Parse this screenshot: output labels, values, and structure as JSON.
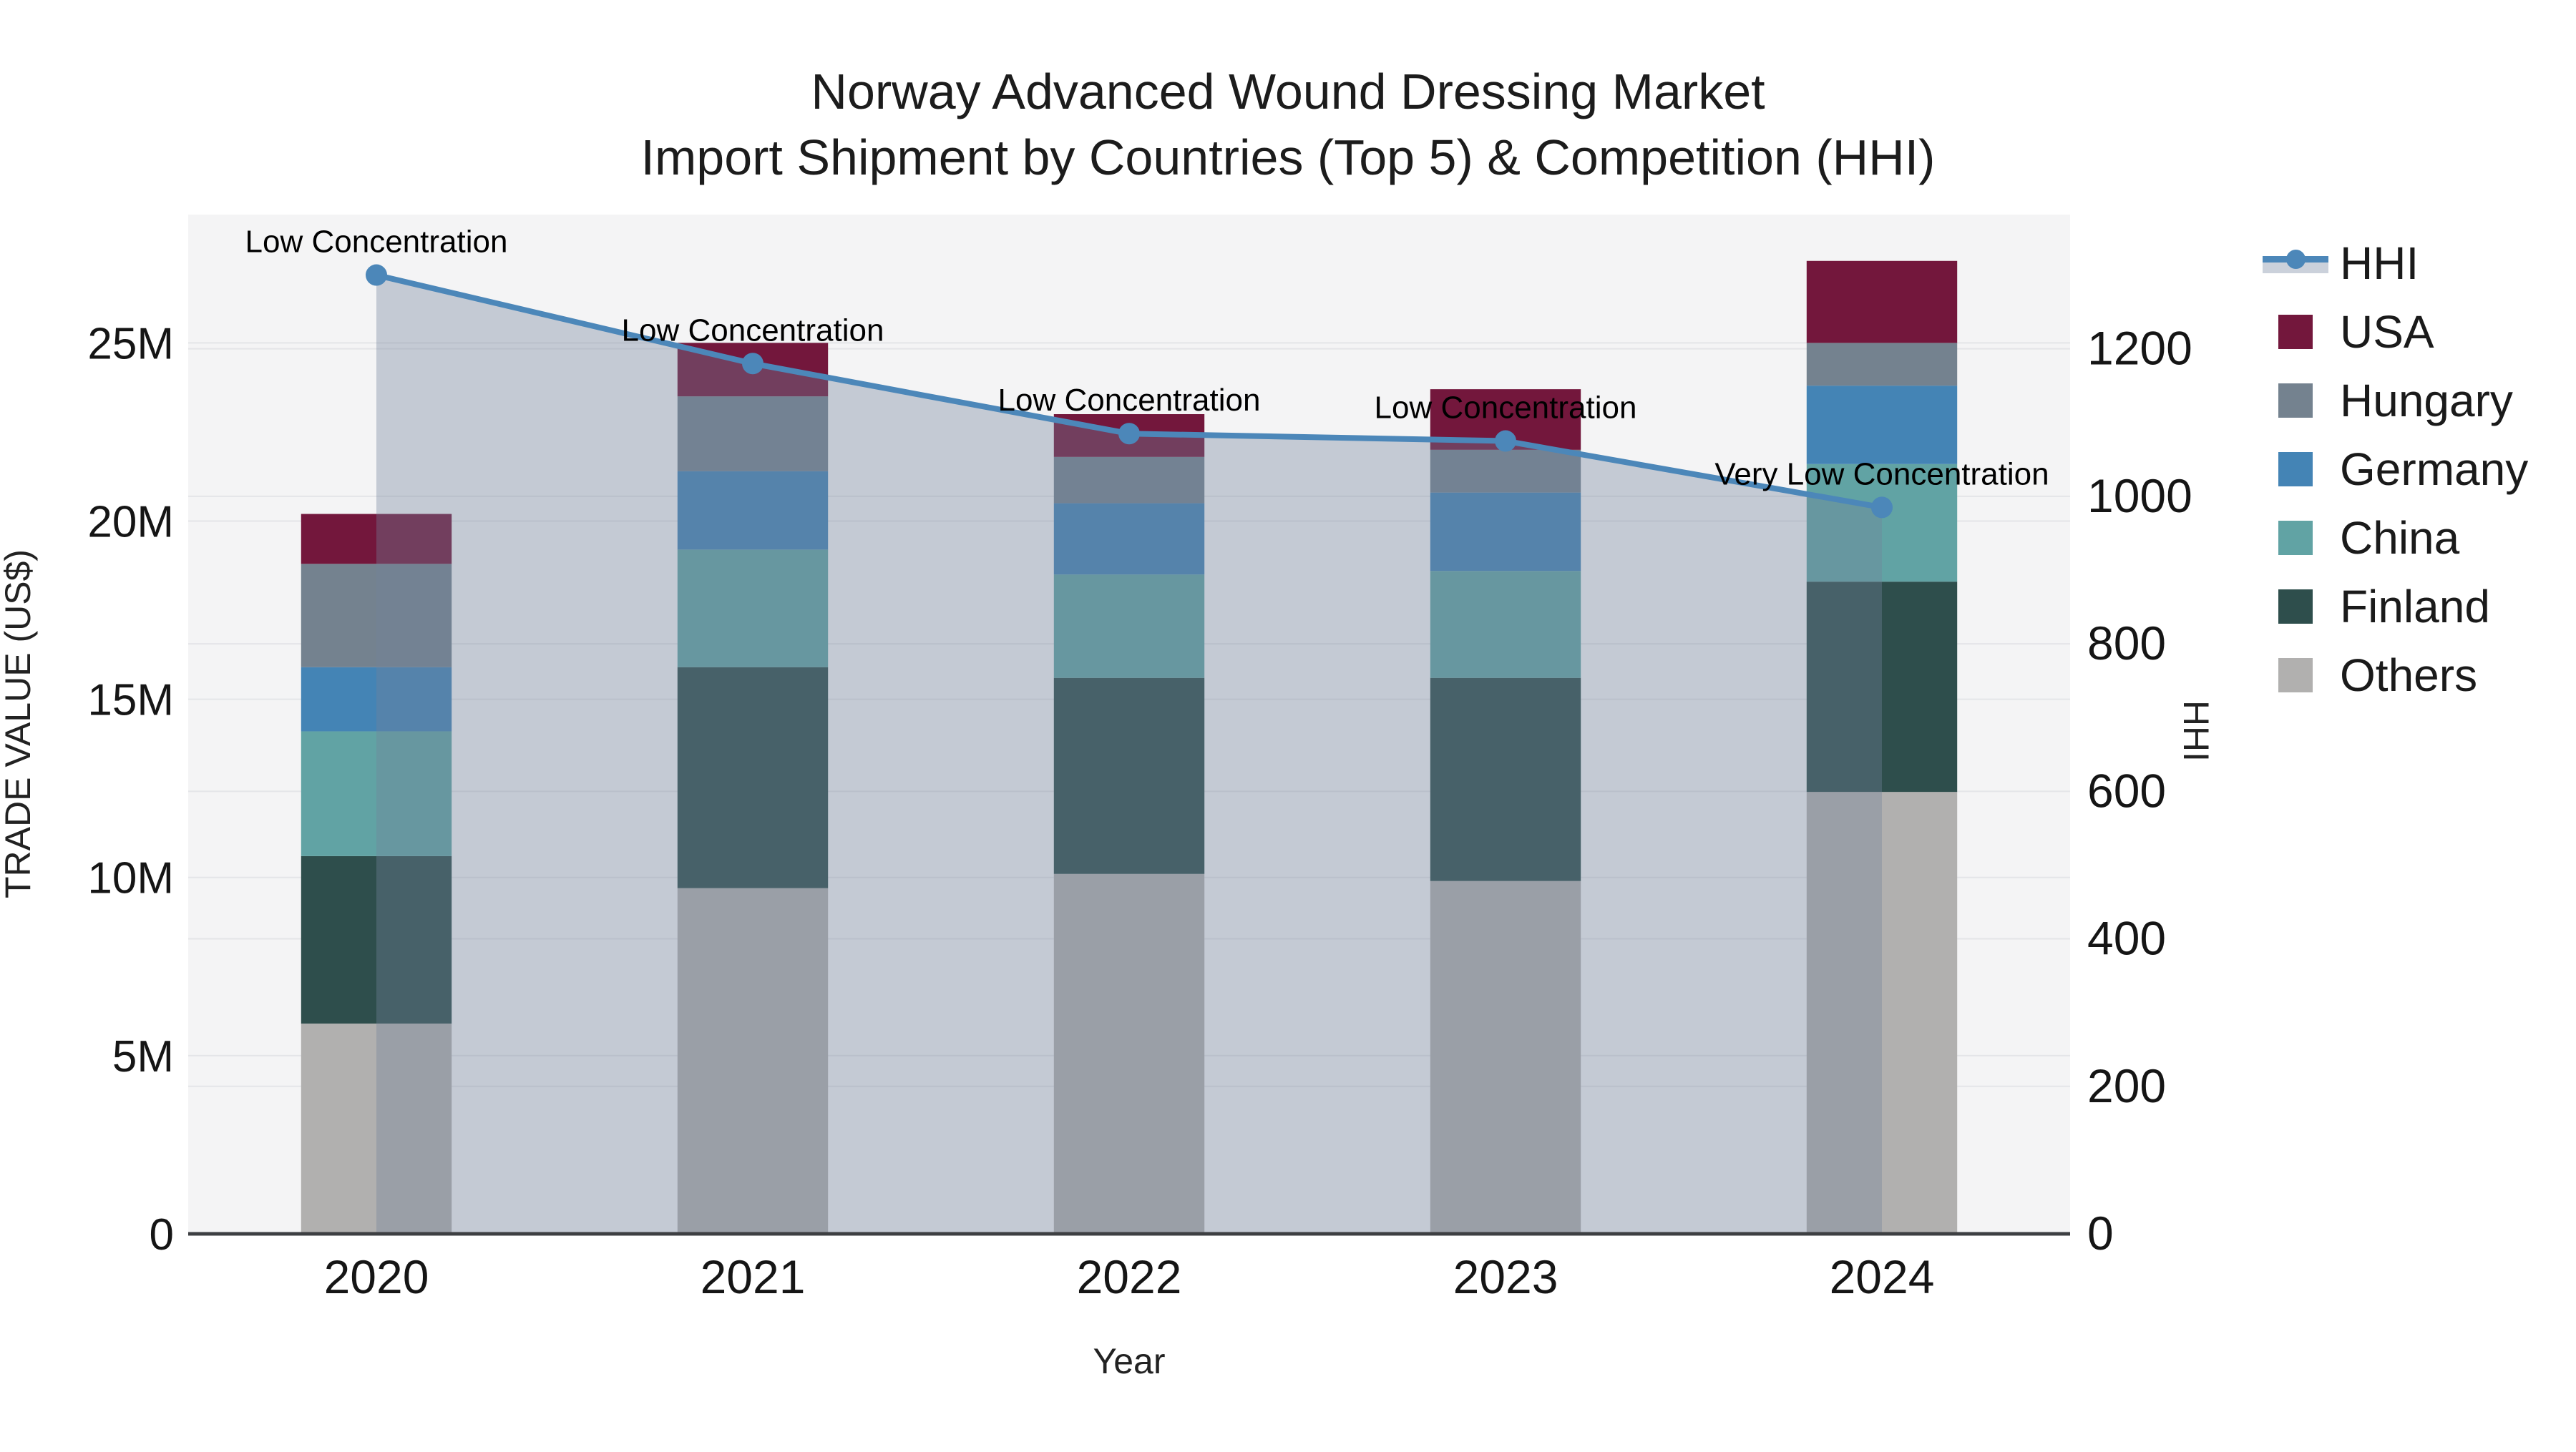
{
  "title": {
    "line1": "Norway Advanced Wound Dressing Market",
    "line2": "Import Shipment by Countries (Top 5) & Competition (HHI)"
  },
  "axes": {
    "x": {
      "title": "Year"
    },
    "y_left": {
      "title": "TRADE VALUE (US$)",
      "tick_labels": [
        "0",
        "5M",
        "10M",
        "15M",
        "20M",
        "25M"
      ],
      "tick_values": [
        0,
        5,
        10,
        15,
        20,
        25
      ]
    },
    "y_right": {
      "title": "HHI",
      "tick_labels": [
        "0",
        "200",
        "400",
        "600",
        "800",
        "1000",
        "1200"
      ],
      "tick_values": [
        0,
        200,
        400,
        600,
        800,
        1000,
        1200
      ]
    }
  },
  "chart_data": {
    "type": "combo: stacked-bar (left axis, million US$) + line-with-area (right axis, HHI)",
    "categories": [
      "2020",
      "2021",
      "2022",
      "2023",
      "2024"
    ],
    "bar_unit": "million US$",
    "series": [
      {
        "name": "Others",
        "color": "#B1B0AF",
        "values": [
          5.9,
          9.7,
          10.1,
          9.9,
          12.4
        ]
      },
      {
        "name": "Finland",
        "color": "#2E4E4C",
        "values": [
          4.7,
          6.2,
          5.5,
          5.7,
          5.9
        ]
      },
      {
        "name": "China",
        "color": "#61A3A4",
        "values": [
          3.5,
          3.3,
          2.9,
          3.0,
          3.3
        ]
      },
      {
        "name": "Germany",
        "color": "#4484B5",
        "values": [
          1.8,
          2.2,
          2.0,
          2.2,
          2.2
        ]
      },
      {
        "name": "Hungary",
        "color": "#74828F",
        "values": [
          2.9,
          2.1,
          1.3,
          1.2,
          1.2
        ]
      },
      {
        "name": "USA",
        "color": "#73173C",
        "values": [
          1.4,
          1.5,
          1.2,
          1.7,
          2.3
        ]
      }
    ],
    "bar_totals": [
      20.2,
      25.0,
      23.0,
      23.7,
      27.3
    ],
    "hhi": {
      "name": "HHI",
      "values": [
        1300,
        1180,
        1085,
        1075,
        985
      ]
    },
    "annotations": [
      "Low Concentration",
      "Low Concentration",
      "Low Concentration",
      "Low Concentration",
      "Very Low Concentration"
    ],
    "ylim_left": [
      0,
      28.6
    ],
    "ylim_right": [
      0,
      1382
    ],
    "grid": true,
    "legend_position": "right",
    "legend_order": [
      "HHI",
      "USA",
      "Hungary",
      "Germany",
      "China",
      "Finland",
      "Others"
    ]
  },
  "colors": {
    "hhi_line": "#4C87B9",
    "hhi_fill": "rgba(115,131,155,0.37)",
    "hhi_legend_band": "#CBD1DB",
    "plot_bg": "#F4F4F5",
    "grid": "#E4E5E8",
    "axis_line": "#3D3F42",
    "text": "#1c1c1c"
  }
}
